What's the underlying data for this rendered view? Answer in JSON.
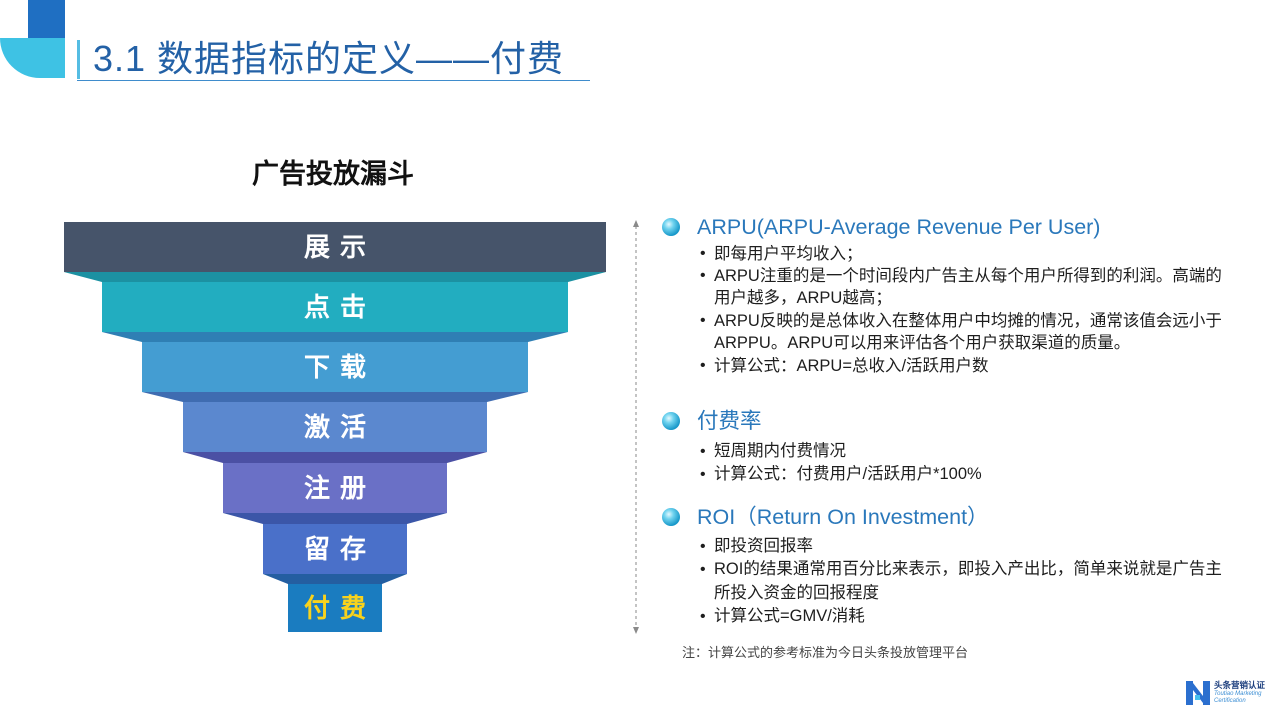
{
  "theme": {
    "title": "#2361a6",
    "heading": "#2a78bb",
    "accent_dark": "#1f6fc2",
    "accent_light": "#3ec2e4",
    "body_text": "#1e1e1e"
  },
  "slide": {
    "title": "3.1 数据指标的定义——付费"
  },
  "funnel": {
    "title": "广告投放漏斗",
    "layers": [
      {
        "label": "展示",
        "color": "#46546a",
        "slope_color": "#1c91a2",
        "label_color": "#ffffff"
      },
      {
        "label": "点击",
        "color": "#22adc0",
        "slope_color": "#2f7fb4",
        "label_color": "#ffffff"
      },
      {
        "label": "下载",
        "color": "#449dd2",
        "slope_color": "#3f6cb1",
        "label_color": "#ffffff"
      },
      {
        "label": "激活",
        "color": "#5b88cf",
        "slope_color": "#4b50a4",
        "label_color": "#ffffff"
      },
      {
        "label": "注册",
        "color": "#6a70c6",
        "slope_color": "#3b56a8",
        "label_color": "#ffffff"
      },
      {
        "label": "留存",
        "color": "#4a70c9",
        "slope_color": "#245ea1",
        "label_color": "#ffffff"
      },
      {
        "label": "付费",
        "color": "#1a7cc0",
        "label_color": "#f8d21c"
      }
    ]
  },
  "sections": [
    {
      "heading": "ARPU(ARPU-Average Revenue Per User)",
      "bullets": [
        {
          "lines": [
            "即每用户平均收入；"
          ]
        },
        {
          "lines": [
            "ARPU注重的是一个时间段内广告主从每个用户所得到的利润。高端的",
            "用户越多，ARPU越高；"
          ]
        },
        {
          "lines": [
            "ARPU反映的是总体收入在整体用户中均摊的情况，通常该值会远小于",
            "ARPPU。ARPU可以用来评估各个用户获取渠道的质量。"
          ]
        },
        {
          "lines": [
            "计算公式：ARPU=总收入/活跃用户数"
          ]
        }
      ]
    },
    {
      "heading": "付费率",
      "bullets": [
        {
          "lines": [
            "短周期内付费情况"
          ]
        },
        {
          "lines": [
            "计算公式：付费用户/活跃用户*100%"
          ]
        }
      ]
    },
    {
      "heading": "ROI（Return On Investment）",
      "bullets": [
        {
          "lines": [
            "即投资回报率"
          ]
        },
        {
          "lines": [
            "ROI的结果通常用百分比来表示，即投入产出比，简单来说就是广告主",
            "所投入资金的回报程度"
          ]
        },
        {
          "lines": [
            "计算公式=GMV/消耗"
          ]
        }
      ]
    }
  ],
  "note": "注：计算公式的参考标准为今日头条投放管理平台",
  "logo": {
    "name_cn": "头条营销认证",
    "name_en_line1": "Toutiao Marketing",
    "name_en_line2": "Certification"
  }
}
